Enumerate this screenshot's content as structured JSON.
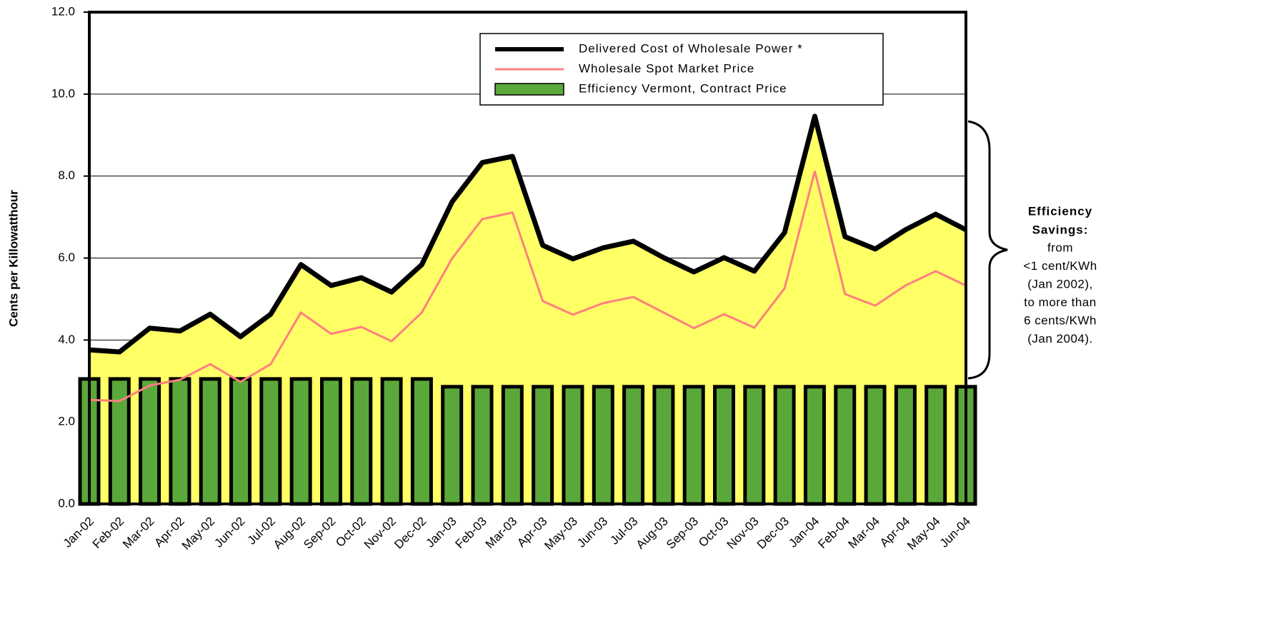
{
  "chart_data": {
    "type": "line",
    "y_label": "Cents per Killowatthour",
    "categories": [
      "Jan-02",
      "Feb-02",
      "Mar-02",
      "Apr-02",
      "May-02",
      "Jun-02",
      "Jul-02",
      "Aug-02",
      "Sep-02",
      "Oct-02",
      "Nov-02",
      "Dec-02",
      "Jan-03",
      "Feb-03",
      "Mar-03",
      "Apr-03",
      "May-03",
      "Jun-03",
      "Jul-03",
      "Aug-03",
      "Sep-03",
      "Oct-03",
      "Nov-03",
      "Dec-03",
      "Jan-04",
      "Feb-04",
      "Mar-04",
      "Apr-04",
      "May-04",
      "Jun-04"
    ],
    "series": [
      {
        "name": "Delivered Cost of Wholesale Power *",
        "kind": "area",
        "color": "#000000",
        "fill": "#ffff66",
        "values": [
          3.76,
          3.71,
          4.29,
          4.22,
          4.63,
          4.08,
          4.63,
          5.84,
          5.33,
          5.52,
          5.17,
          5.84,
          7.37,
          8.33,
          8.48,
          6.31,
          5.98,
          6.25,
          6.41,
          6.01,
          5.66,
          6.01,
          5.68,
          6.62,
          9.46,
          6.52,
          6.22,
          6.69,
          7.07,
          6.69
        ]
      },
      {
        "name": "Wholesale Spot Market Price",
        "kind": "line",
        "color": "#ff7f7f",
        "values": [
          2.54,
          2.51,
          2.89,
          3.03,
          3.41,
          2.98,
          3.41,
          4.67,
          4.15,
          4.32,
          3.97,
          4.67,
          5.99,
          6.95,
          7.11,
          4.95,
          4.62,
          4.9,
          5.05,
          4.67,
          4.29,
          4.63,
          4.3,
          5.26,
          8.12,
          5.12,
          4.84,
          5.33,
          5.68,
          5.33
        ]
      },
      {
        "name": "Efficiency Vermont, Contract Price",
        "kind": "bar",
        "color": "#5aa83a",
        "values": [
          3.05,
          3.05,
          3.05,
          3.05,
          3.05,
          3.05,
          3.05,
          3.05,
          3.05,
          3.05,
          3.05,
          3.05,
          2.86,
          2.86,
          2.86,
          2.86,
          2.86,
          2.86,
          2.86,
          2.86,
          2.86,
          2.86,
          2.86,
          2.86,
          2.86,
          2.86,
          2.86,
          2.86,
          2.86,
          2.86
        ]
      }
    ],
    "ylim": [
      0,
      12
    ],
    "yticks": [
      {
        "value": 0,
        "label": "0.0"
      },
      {
        "value": 2,
        "label": "2.0"
      },
      {
        "value": 4,
        "label": "4.0"
      },
      {
        "value": 6,
        "label": "6.0"
      },
      {
        "value": 8,
        "label": "8.0"
      },
      {
        "value": 10,
        "label": "10.0"
      },
      {
        "value": 12,
        "label": "12.0"
      }
    ],
    "grid": true,
    "legend": "upper right",
    "annotation": {
      "title": [
        "Efficiency",
        "Savings:"
      ],
      "lines": [
        "from",
        "<1 cent/KWh",
        "(Jan 2002),",
        "to more than",
        "6 cents/KWh",
        "(Jan 2004)."
      ],
      "color": "#2e8b2e"
    }
  }
}
